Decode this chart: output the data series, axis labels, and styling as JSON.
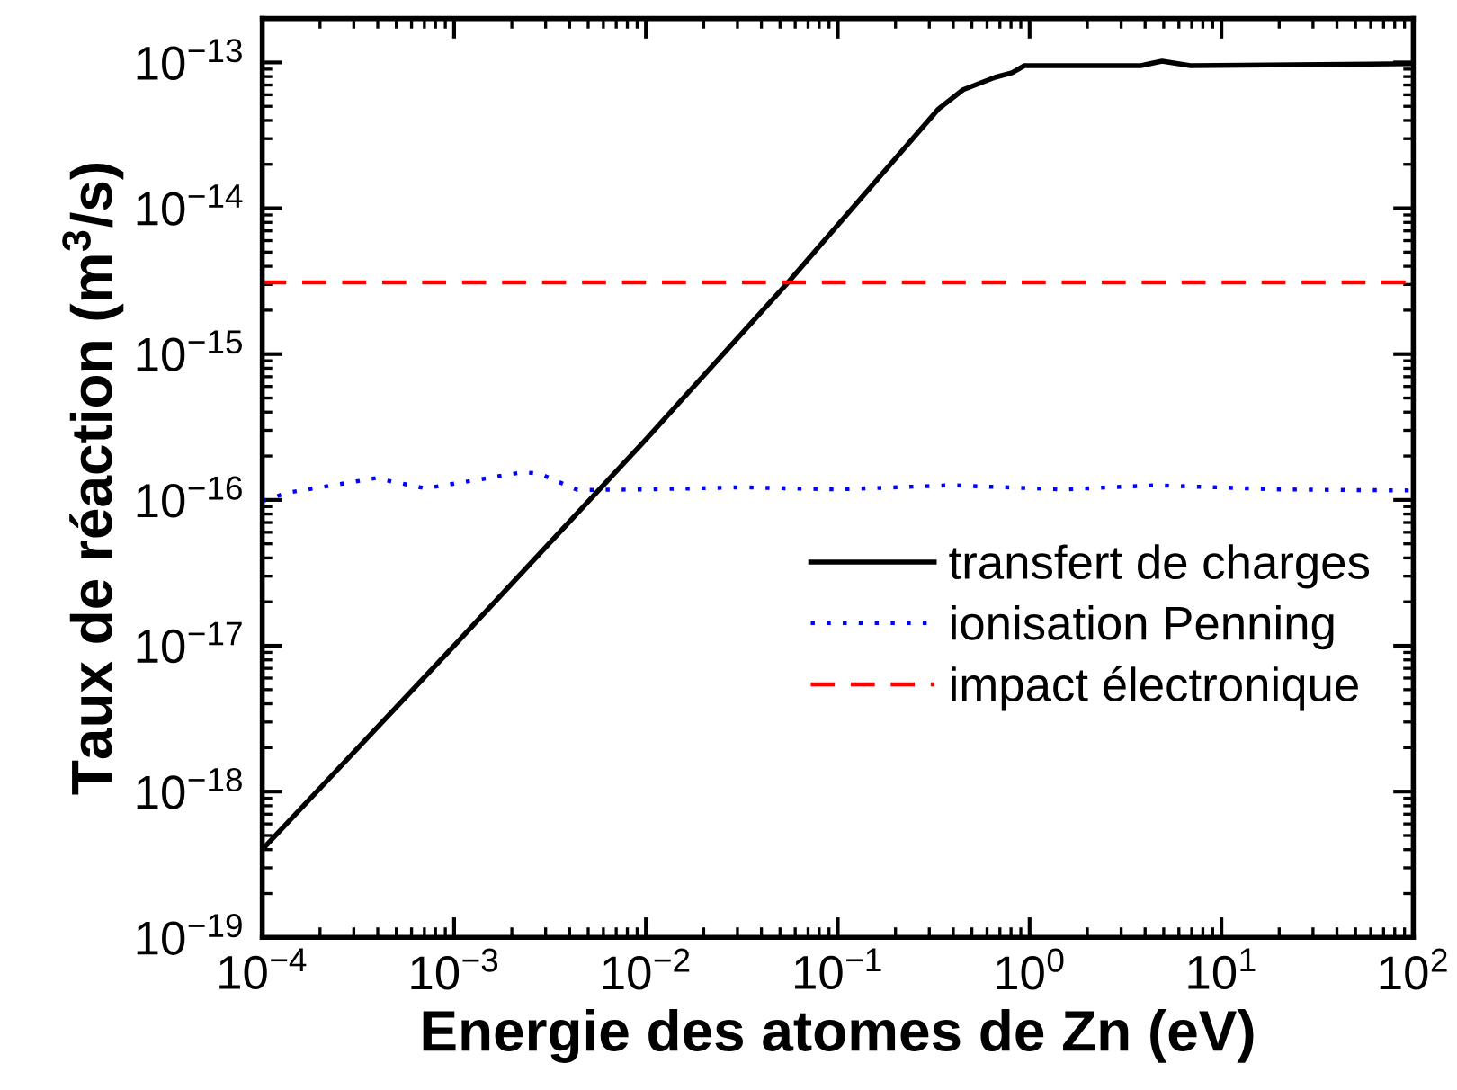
{
  "chart_data": {
    "type": "line",
    "xlabel": "Energie des atomes de Zn (eV)",
    "ylabel": "Taux de réaction (m$^{3}$/s)",
    "log": "xy",
    "xlim": [
      0.0001,
      100
    ],
    "xticks": [
      {
        "value": 0.0001,
        "label": "10$^{−4}$"
      },
      {
        "value": 0.001,
        "label": "10$^{−3}$"
      },
      {
        "value": 0.01,
        "label": "10$^{−2}$"
      },
      {
        "value": 0.1,
        "label": "10$^{−1}$"
      },
      {
        "value": 1,
        "label": "10$^{0}$"
      },
      {
        "value": 10,
        "label": "10$^{1}$"
      },
      {
        "value": 100,
        "label": "10$^{2}$"
      }
    ],
    "ylim": [
      1e-19,
      2e-13
    ],
    "yticks": [
      {
        "value": 1e-19,
        "label": "10$^{−19}$"
      },
      {
        "value": 1e-18,
        "label": "10$^{−18}$"
      },
      {
        "value": 1e-17,
        "label": "10$^{−17}$"
      },
      {
        "value": 1e-16,
        "label": "10$^{−16}$"
      },
      {
        "value": 1e-15,
        "label": "10$^{−15}$"
      },
      {
        "value": 1e-14,
        "label": "10$^{−14}$"
      },
      {
        "value": 1e-13,
        "label": "10$^{−13}$"
      }
    ],
    "legend": "bottom right",
    "grid": false,
    "series": [
      {
        "name": "transfert de charges",
        "color": "#000000",
        "line_style": "solid",
        "x": [
          0.0001,
          0.001,
          0.01,
          0.055,
          0.335,
          0.45,
          0.66,
          0.81,
          0.94,
          3.8,
          4.9,
          6.9,
          100
        ],
        "values": [
          4e-19,
          1e-17,
          2.6e-16,
          3.1e-15,
          4.8e-14,
          6.5e-14,
          7.9e-14,
          8.5e-14,
          9.5e-14,
          9.5e-14,
          1.02e-13,
          9.5e-14,
          9.8e-14
        ]
      },
      {
        "name": "ionisation Penning",
        "color": "#0000ff",
        "line_style": "dotted",
        "x": [
          0.0001,
          0.000135,
          0.00039,
          0.00071,
          0.0023,
          0.0028,
          0.0044,
          0.01,
          0.032,
          0.1,
          0.39,
          1.5,
          4.5,
          20,
          100
        ],
        "values": [
          9.8e-17,
          1.12e-16,
          1.41e-16,
          1.2e-16,
          1.55e-16,
          1.51e-16,
          1.17e-16,
          1.18e-16,
          1.22e-16,
          1.18e-16,
          1.26e-16,
          1.18e-16,
          1.26e-16,
          1.18e-16,
          1.16e-16
        ]
      },
      {
        "name": "impact électronique",
        "color": "#ff0000",
        "line_style": "dashed",
        "x": [
          0.0001,
          100
        ],
        "values": [
          3.1e-15,
          3.1e-15
        ]
      }
    ]
  }
}
